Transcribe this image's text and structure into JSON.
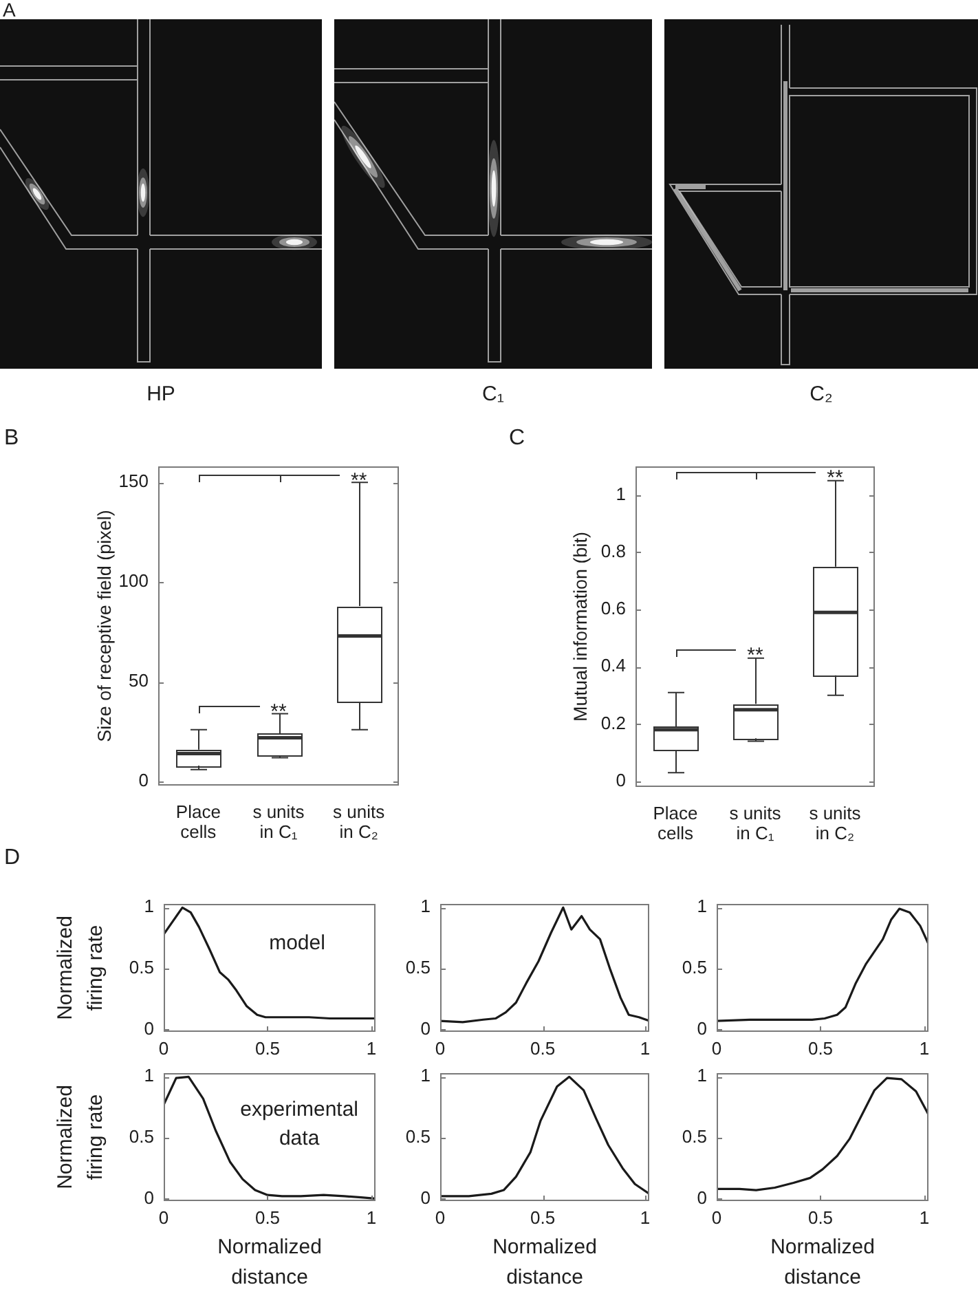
{
  "chart_data": [
    {
      "type": "other",
      "title": "A",
      "annotations": [
        "HP",
        "C₁",
        "C₂"
      ]
    },
    {
      "type": "box",
      "title": "B",
      "ylabel": "Size of receptive field (pixel)",
      "categories": [
        "Place\ncells",
        "s units\nin C₁",
        "s units\nin C₂"
      ],
      "color": "#333333",
      "boxes": [
        {
          "low": 6,
          "q1": 8,
          "median": 14,
          "q3": 16,
          "high": 26
        },
        {
          "low": 12,
          "q1": 13,
          "median": 22,
          "q3": 24,
          "high": 34
        },
        {
          "low": 26,
          "q1": 40,
          "median": 73,
          "q3": 88,
          "high": 150
        }
      ],
      "ylim": [
        -2,
        158
      ],
      "yticks": [
        0,
        50,
        100,
        150
      ],
      "annotations": [
        "**",
        "**"
      ]
    },
    {
      "type": "box",
      "title": "C",
      "ylabel": "Mutual information (bit)",
      "categories": [
        "Place\ncells",
        "s units\nin C₁",
        "s units\nin C₂"
      ],
      "color": "#333333",
      "boxes": [
        {
          "low": 0.03,
          "q1": 0.11,
          "median": 0.18,
          "q3": 0.19,
          "high": 0.31
        },
        {
          "low": 0.14,
          "q1": 0.15,
          "median": 0.25,
          "q3": 0.27,
          "high": 0.43
        },
        {
          "low": 0.3,
          "q1": 0.37,
          "median": 0.59,
          "q3": 0.75,
          "high": 1.05
        }
      ],
      "ylim": [
        -0.02,
        1.1
      ],
      "yticks": [
        0,
        0.2,
        0.4,
        0.6,
        0.8,
        1
      ],
      "annotations": [
        "**",
        "**"
      ]
    },
    {
      "type": "line",
      "title": "D",
      "ylabel": "Normalized\nfiring rate",
      "x": [
        0,
        0.09,
        0.13,
        0.17,
        0.22,
        0.27,
        0.31,
        0.35,
        0.4,
        0.45,
        0.49,
        0.6,
        0.7,
        0.8,
        0.9,
        1.02
      ],
      "values": [
        0.78,
        1.0,
        0.96,
        0.84,
        0.66,
        0.47,
        0.41,
        0.32,
        0.19,
        0.12,
        0.1,
        0.1,
        0.1,
        0.09,
        0.09,
        0.09
      ],
      "color": "#1a1a1a",
      "xlim": [
        0,
        1.02
      ],
      "ylim": [
        -0.02,
        1.03
      ],
      "xticks": [
        0,
        0.5,
        1
      ],
      "yticks": [
        0,
        0.5,
        1
      ],
      "annotations": [
        "model"
      ]
    },
    {
      "type": "line",
      "x": [
        0,
        0.11,
        0.21,
        0.27,
        0.32,
        0.37,
        0.42,
        0.48,
        0.54,
        0.6,
        0.64,
        0.69,
        0.73,
        0.78,
        0.83,
        0.88,
        0.92,
        0.97,
        1.02
      ],
      "values": [
        0.07,
        0.06,
        0.08,
        0.09,
        0.14,
        0.22,
        0.38,
        0.56,
        0.79,
        1.0,
        0.82,
        0.93,
        0.82,
        0.74,
        0.49,
        0.26,
        0.12,
        0.1,
        0.07
      ],
      "color": "#1a1a1a",
      "xlim": [
        0,
        1.02
      ],
      "ylim": [
        -0.02,
        1.03
      ],
      "xticks": [
        0,
        0.5,
        1
      ],
      "yticks": [
        0,
        0.5,
        1
      ]
    },
    {
      "type": "line",
      "x": [
        0,
        0.16,
        0.31,
        0.46,
        0.52,
        0.58,
        0.62,
        0.67,
        0.72,
        0.76,
        0.8,
        0.84,
        0.88,
        0.93,
        0.98,
        1.02
      ],
      "values": [
        0.07,
        0.08,
        0.08,
        0.08,
        0.09,
        0.12,
        0.18,
        0.38,
        0.54,
        0.64,
        0.74,
        0.9,
        0.99,
        0.96,
        0.85,
        0.7
      ],
      "color": "#1a1a1a",
      "xlim": [
        0,
        1.02
      ],
      "ylim": [
        -0.02,
        1.03
      ],
      "xticks": [
        0,
        0.5,
        1
      ],
      "yticks": [
        0,
        0.5,
        1
      ]
    },
    {
      "type": "line",
      "ylabel": "Normalized\nfiring rate",
      "xlabel": "Normalized\ndistance",
      "x": [
        0,
        0.06,
        0.12,
        0.19,
        0.25,
        0.32,
        0.38,
        0.44,
        0.5,
        0.57,
        0.66,
        0.77,
        0.87,
        0.95,
        1.02
      ],
      "values": [
        0.77,
        0.99,
        1.0,
        0.82,
        0.56,
        0.3,
        0.16,
        0.07,
        0.03,
        0.02,
        0.02,
        0.03,
        0.02,
        0.01,
        0.0
      ],
      "color": "#1a1a1a",
      "xlim": [
        0,
        1.02
      ],
      "ylim": [
        -0.02,
        1.03
      ],
      "xticks": [
        0,
        0.5,
        1
      ],
      "yticks": [
        0,
        0.5,
        1
      ],
      "annotations": [
        "experimental\ndata"
      ]
    },
    {
      "type": "line",
      "xlabel": "Normalized\ndistance",
      "x": [
        0,
        0.14,
        0.25,
        0.31,
        0.37,
        0.44,
        0.49,
        0.57,
        0.63,
        0.7,
        0.76,
        0.82,
        0.89,
        0.95,
        1.02
      ],
      "values": [
        0.02,
        0.02,
        0.04,
        0.07,
        0.18,
        0.38,
        0.64,
        0.92,
        1.0,
        0.89,
        0.66,
        0.44,
        0.25,
        0.12,
        0.04
      ],
      "color": "#1a1a1a",
      "xlim": [
        0,
        1.02
      ],
      "ylim": [
        -0.02,
        1.03
      ],
      "xticks": [
        0,
        0.5,
        1
      ],
      "yticks": [
        0,
        0.5,
        1
      ]
    },
    {
      "type": "line",
      "xlabel": "Normalized\ndistance",
      "x": [
        0,
        0.11,
        0.19,
        0.28,
        0.37,
        0.45,
        0.51,
        0.58,
        0.64,
        0.7,
        0.76,
        0.82,
        0.89,
        0.96,
        1.02
      ],
      "values": [
        0.08,
        0.08,
        0.07,
        0.09,
        0.13,
        0.17,
        0.24,
        0.35,
        0.49,
        0.69,
        0.89,
        0.99,
        0.98,
        0.88,
        0.69
      ],
      "color": "#1a1a1a",
      "xlim": [
        0,
        1.02
      ],
      "ylim": [
        -0.02,
        1.03
      ],
      "xticks": [
        0,
        0.5,
        1
      ],
      "yticks": [
        0,
        0.5,
        1
      ]
    }
  ]
}
